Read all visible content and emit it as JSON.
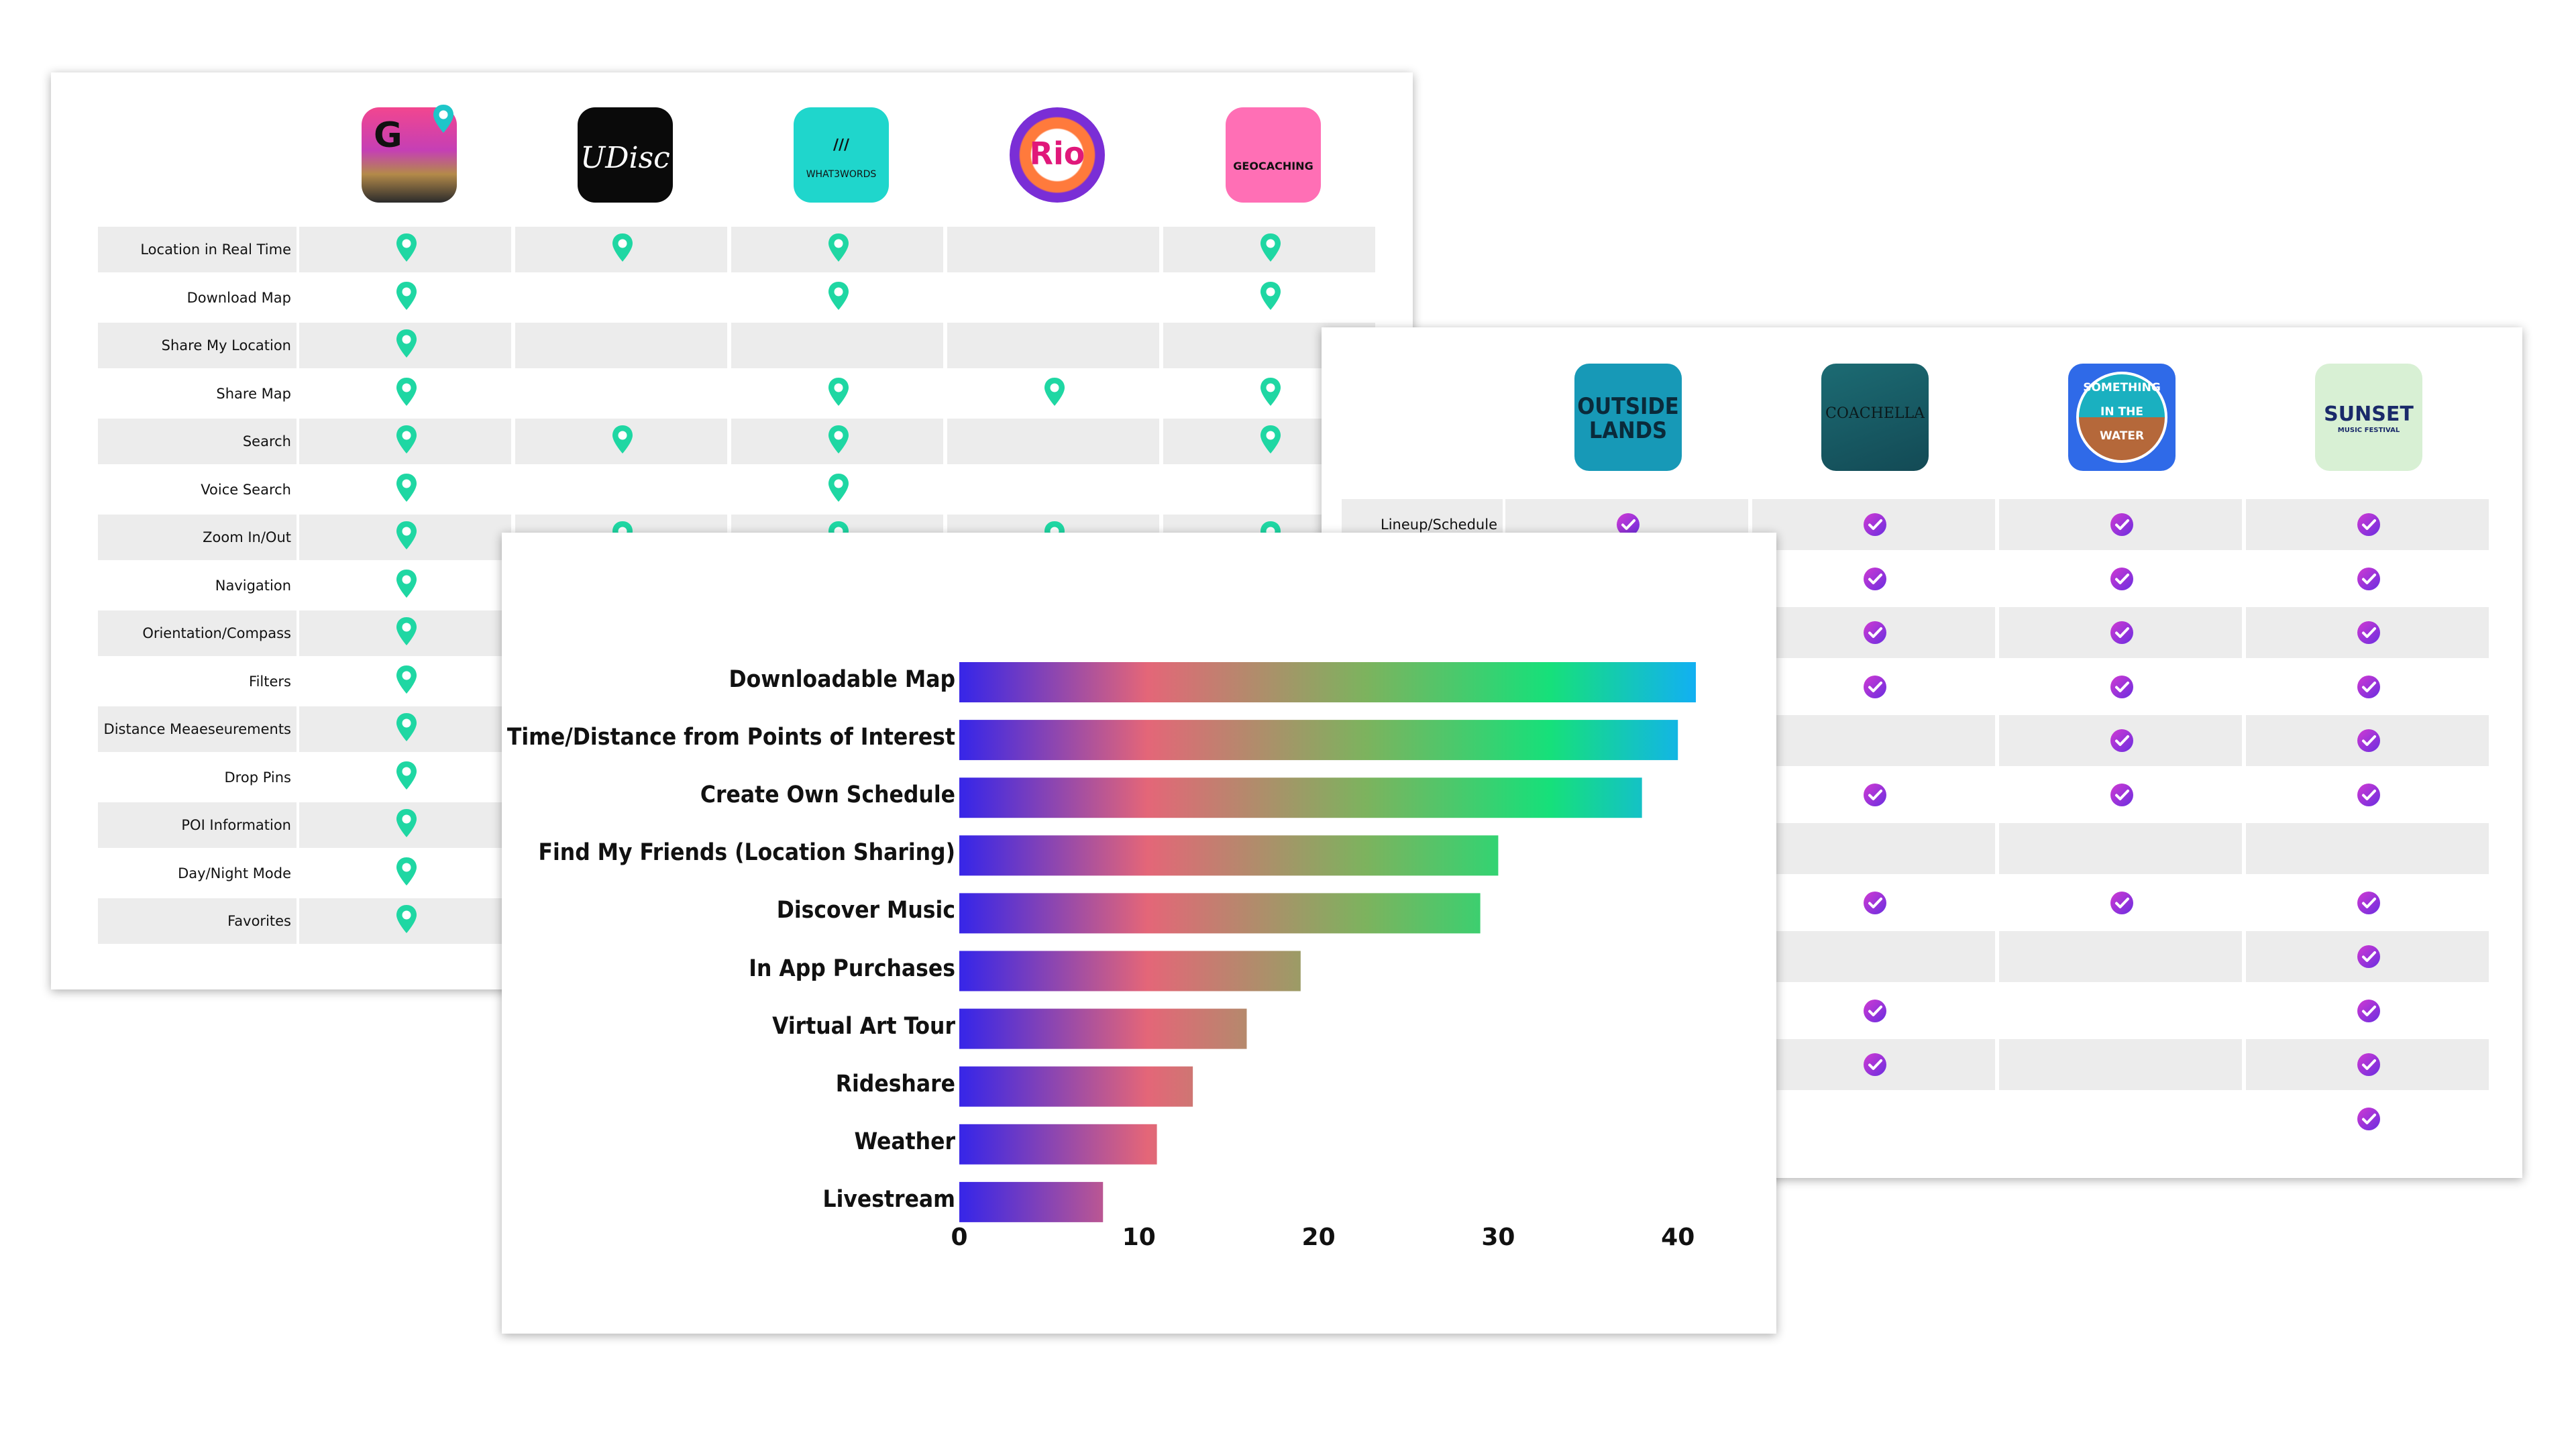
{
  "app_comparison": {
    "apps": [
      {
        "name": "maps-app",
        "icon": "pin-map-app-icon",
        "text": "G"
      },
      {
        "name": "udisc",
        "icon": "udisc-app-icon",
        "text": "UDisc"
      },
      {
        "name": "what3words",
        "icon": "what3words-app-icon",
        "text": "WHAT3WORDS",
        "glyph": "///"
      },
      {
        "name": "rio",
        "icon": "rio-olympics-app-icon",
        "text": "Rio"
      },
      {
        "name": "geocaching",
        "icon": "geocaching-app-icon",
        "text": "GEOCACHING"
      }
    ],
    "marker_icon": "location-pin-icon",
    "marker_color": "#1fd7a3",
    "features": [
      {
        "label": "Location in Real Time",
        "marks": [
          true,
          true,
          true,
          false,
          true
        ]
      },
      {
        "label": "Download Map",
        "marks": [
          true,
          false,
          true,
          false,
          true
        ]
      },
      {
        "label": "Share My Location",
        "marks": [
          true,
          false,
          false,
          false,
          false
        ]
      },
      {
        "label": "Share Map",
        "marks": [
          true,
          false,
          true,
          true,
          true
        ]
      },
      {
        "label": "Search",
        "marks": [
          true,
          true,
          true,
          false,
          true
        ]
      },
      {
        "label": "Voice Search",
        "marks": [
          true,
          false,
          true,
          false,
          false
        ]
      },
      {
        "label": "Zoom In/Out",
        "marks": [
          true,
          true,
          true,
          true,
          true
        ]
      },
      {
        "label": "Navigation",
        "marks": [
          true,
          false,
          false,
          false,
          false
        ]
      },
      {
        "label": "Orientation/Compass",
        "marks": [
          true,
          false,
          false,
          false,
          false
        ]
      },
      {
        "label": "Filters",
        "marks": [
          true,
          false,
          false,
          false,
          false
        ]
      },
      {
        "label": "Distance Meaeseurements",
        "marks": [
          true,
          false,
          false,
          false,
          false
        ]
      },
      {
        "label": "Drop Pins",
        "marks": [
          true,
          false,
          false,
          false,
          false
        ]
      },
      {
        "label": "POI Information",
        "marks": [
          true,
          false,
          false,
          false,
          false
        ]
      },
      {
        "label": "Day/Night Mode",
        "marks": [
          true,
          false,
          false,
          false,
          false
        ]
      },
      {
        "label": "Favorites",
        "marks": [
          true,
          false,
          false,
          false,
          false
        ]
      }
    ]
  },
  "festival_comparison": {
    "apps": [
      {
        "name": "outside-lands",
        "icon": "outside-lands-app-icon",
        "lines": [
          "OUTSIDE",
          "LANDS"
        ]
      },
      {
        "name": "coachella",
        "icon": "coachella-app-icon",
        "lines": [
          "COACHELLA"
        ]
      },
      {
        "name": "something-in-the-water",
        "icon": "something-in-the-water-app-icon",
        "lines": [
          "SOMETHING",
          "IN THE",
          "WATER"
        ]
      },
      {
        "name": "sunset",
        "icon": "sunset-music-festival-app-icon",
        "lines": [
          "SUNSET",
          "MUSIC FESTIVAL"
        ]
      }
    ],
    "marker_icon": "check-circle-icon",
    "features": [
      {
        "label": "Lineup/Schedule",
        "marks": [
          true,
          true,
          true,
          true
        ]
      },
      {
        "label": "",
        "marks": [
          false,
          true,
          true,
          true
        ]
      },
      {
        "label": "",
        "marks": [
          false,
          true,
          true,
          true
        ]
      },
      {
        "label": "",
        "marks": [
          false,
          true,
          true,
          true
        ]
      },
      {
        "label": "",
        "marks": [
          false,
          false,
          true,
          true
        ]
      },
      {
        "label": "",
        "marks": [
          false,
          true,
          true,
          true
        ]
      },
      {
        "label": "",
        "marks": [
          false,
          false,
          false,
          false
        ]
      },
      {
        "label": "",
        "marks": [
          false,
          true,
          true,
          true
        ]
      },
      {
        "label": "",
        "marks": [
          false,
          false,
          false,
          true
        ]
      },
      {
        "label": "",
        "marks": [
          false,
          true,
          false,
          true
        ]
      },
      {
        "label": "",
        "marks": [
          false,
          true,
          false,
          true
        ]
      },
      {
        "label": "",
        "marks": [
          false,
          false,
          false,
          true
        ]
      }
    ]
  },
  "chart_data": {
    "type": "bar",
    "orientation": "horizontal",
    "categories": [
      "Downloadable Map",
      "Time/Distance from Points of Interest",
      "Create Own Schedule",
      "Find My Friends (Location Sharing)",
      "Discover Music",
      "In App Purchases",
      "Virtual Art Tour",
      "Rideshare",
      "Weather",
      "Livestream"
    ],
    "values": [
      41,
      40,
      38,
      30,
      29,
      19,
      16,
      13,
      11,
      8
    ],
    "xlim": [
      0,
      41
    ],
    "xticks": [
      "0",
      "10",
      "20",
      "30",
      "40"
    ],
    "title": "",
    "xlabel": "",
    "ylabel": "",
    "grid": false,
    "bar_gradient": [
      "#3a27e6",
      "#e46678",
      "#7cb35e",
      "#16e07a",
      "#12b0f2"
    ]
  }
}
